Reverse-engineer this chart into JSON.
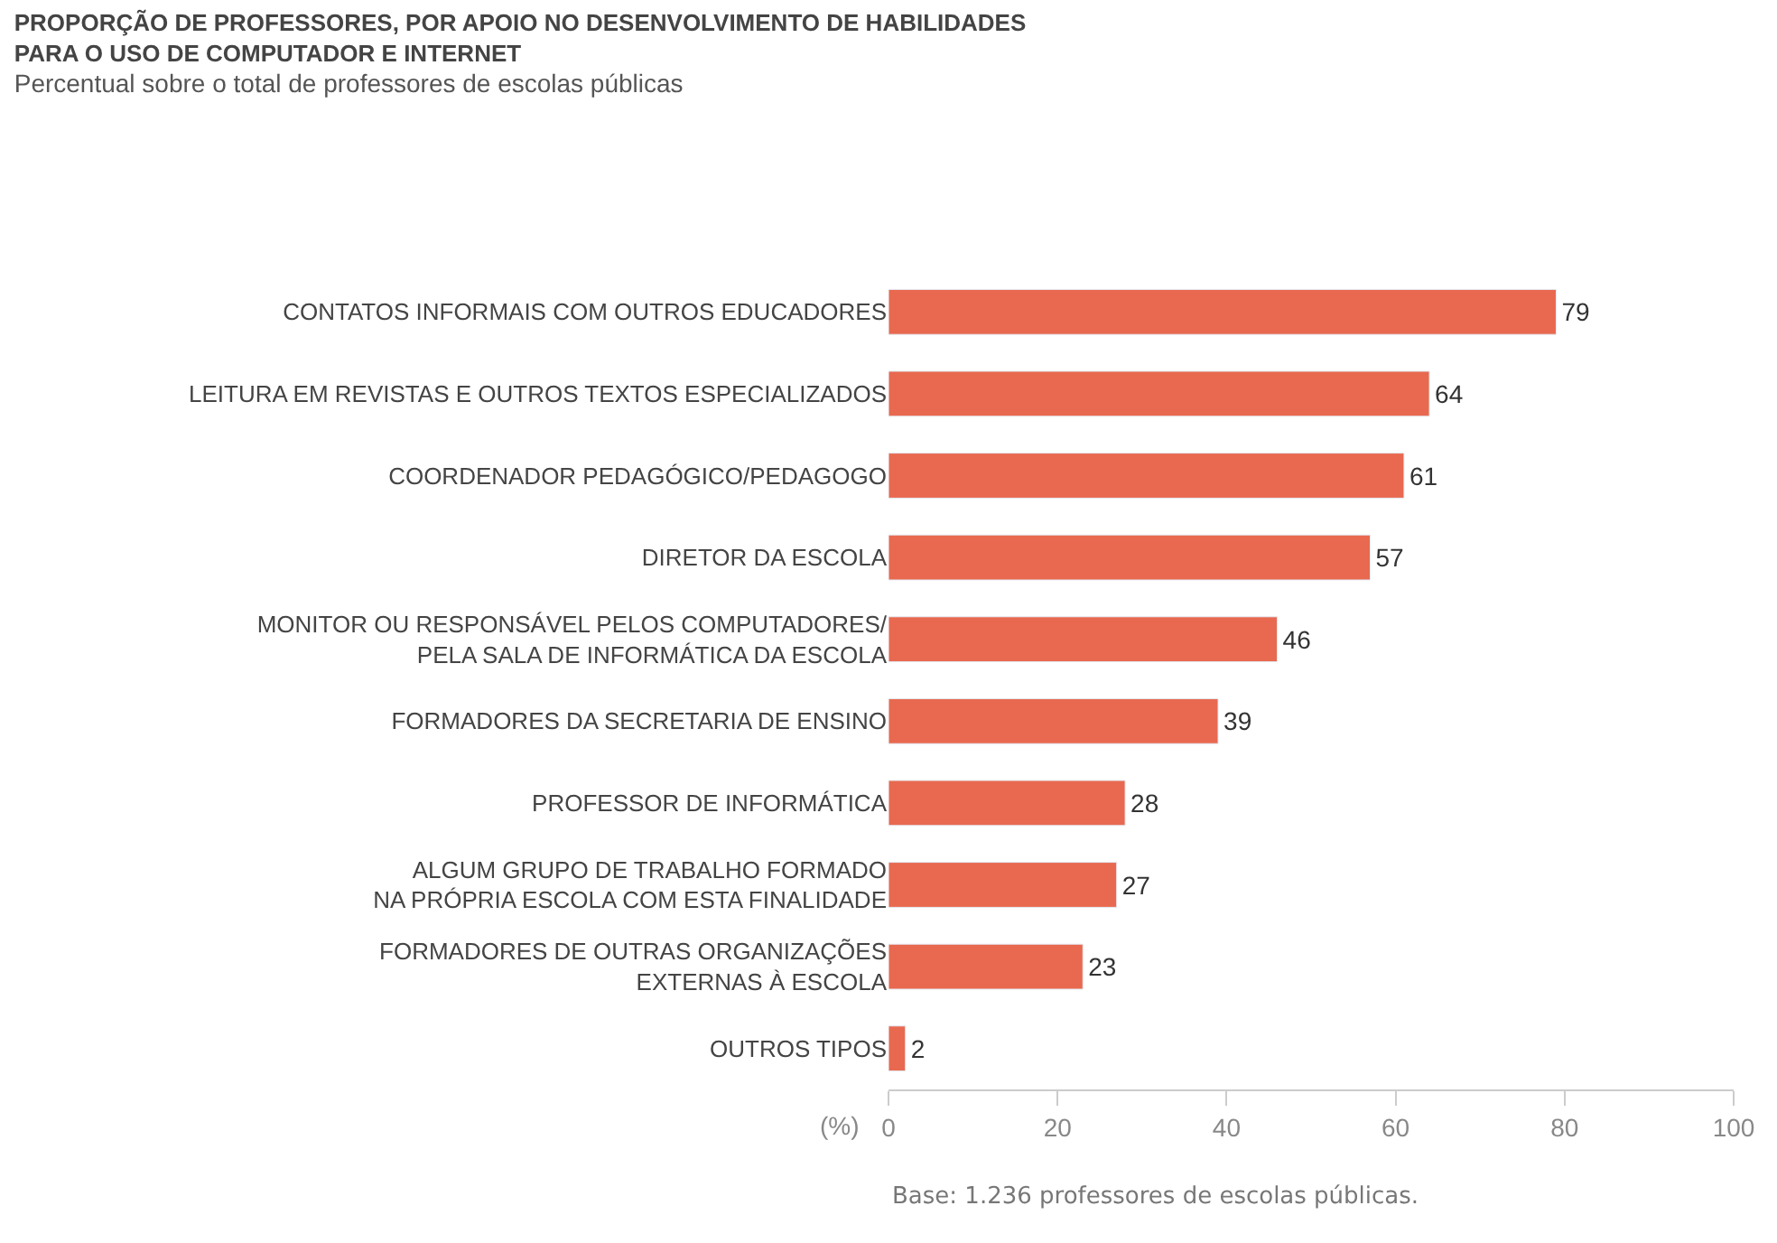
{
  "chart_data": {
    "type": "bar",
    "orientation": "horizontal",
    "title": "PROPORÇÃO DE PROFESSORES, POR APOIO NO DESENVOLVIMENTO DE HABILIDADES\nPARA O USO DE COMPUTADOR E INTERNET",
    "subtitle": "Percentual sobre o total de professores de escolas públicas",
    "xlabel": "(%)",
    "categories": [
      "CONTATOS INFORMAIS COM OUTROS EDUCADORES",
      "LEITURA EM REVISTAS E OUTROS TEXTOS ESPECIALIZADOS",
      "COORDENADOR PEDAGÓGICO/PEDAGOGO",
      "DIRETOR DA ESCOLA",
      "MONITOR OU RESPONSÁVEL PELOS COMPUTADORES/\nPELA SALA DE INFORMÁTICA DA ESCOLA",
      "FORMADORES DA SECRETARIA DE ENSINO",
      "PROFESSOR DE INFORMÁTICA",
      "ALGUM GRUPO DE TRABALHO FORMADO\nNA PRÓPRIA ESCOLA COM ESTA FINALIDADE",
      "FORMADORES DE OUTRAS ORGANIZAÇÕES\nEXTERNAS À ESCOLA",
      "OUTROS TIPOS"
    ],
    "values": [
      79,
      64,
      61,
      57,
      46,
      39,
      28,
      27,
      23,
      2
    ],
    "color": "#e8694f",
    "data_labels": true,
    "xlim": [
      0,
      100
    ],
    "xticks": [
      0,
      20,
      40,
      60,
      80,
      100
    ],
    "annotations": [
      "Base: 1.236 professores de escolas públicas."
    ]
  }
}
